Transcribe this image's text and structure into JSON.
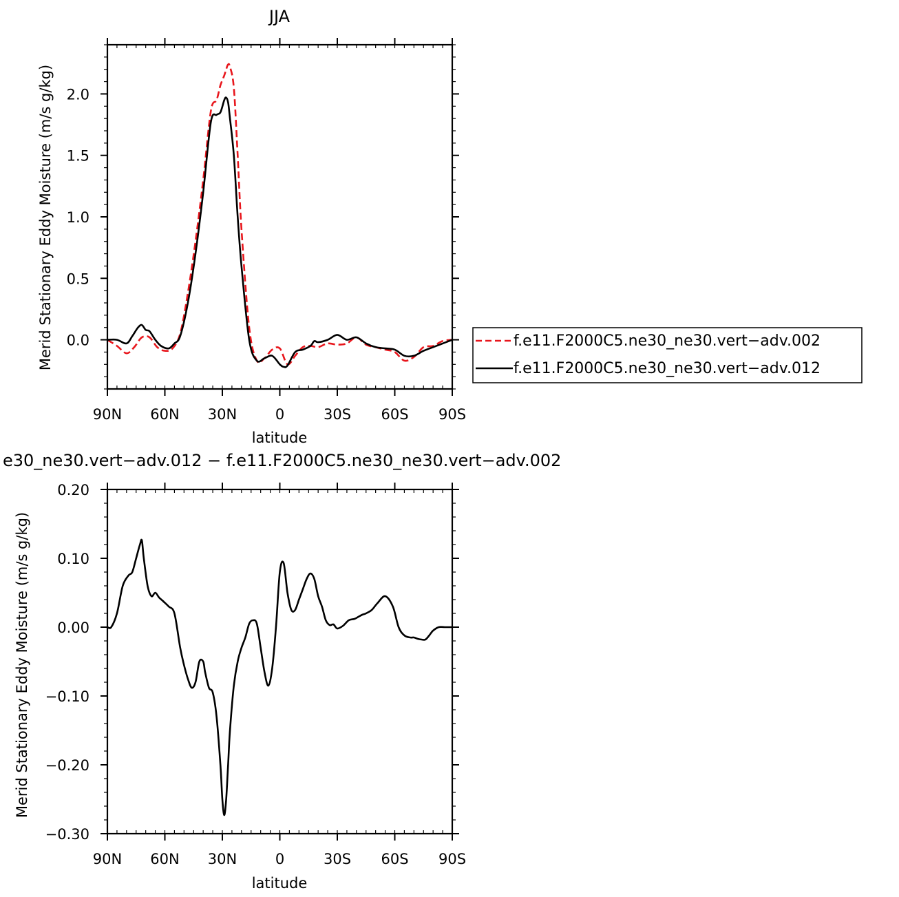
{
  "figure": {
    "top_title": "JJA",
    "bottom_title": "e30_ne30.vert−adv.012 − f.e11.F2000C5.ne30_ne30.vert−adv.002",
    "legend": [
      {
        "label": "f.e11.F2000C5.ne30_ne30.vert−adv.002",
        "color": "#e8161c",
        "style": "dashed"
      },
      {
        "label": "f.e11.F2000C5.ne30_ne30.vert−adv.012",
        "color": "#000000",
        "style": "solid"
      }
    ]
  },
  "chart_data": [
    {
      "type": "line",
      "title": "JJA",
      "xlabel": "latitude",
      "ylabel": "Merid Stationary Eddy Moisture (m/s g/kg)",
      "xlim": [
        90,
        -90
      ],
      "ylim": [
        -0.4,
        2.4
      ],
      "x_ticks": [
        90,
        60,
        30,
        0,
        -30,
        -60,
        -90
      ],
      "x_tick_labels": [
        "90N",
        "60N",
        "30N",
        "0",
        "30S",
        "60S",
        "90S"
      ],
      "y_ticks": [
        0.0,
        0.5,
        1.0,
        1.5,
        2.0
      ],
      "y_tick_labels": [
        "0.0",
        "0.5",
        "1.0",
        "1.5",
        "2.0"
      ],
      "legend_position": "right",
      "series": [
        {
          "name": "f.e11.F2000C5.ne30_ne30.vert−adv.002",
          "color": "#e8161c",
          "style": "dashed",
          "x": [
            90,
            85,
            80,
            76,
            72,
            68,
            64,
            60,
            56,
            52,
            48,
            44,
            40,
            36,
            33,
            31,
            29,
            28,
            27,
            26,
            24,
            22,
            20,
            16,
            12,
            8,
            4,
            0,
            -4,
            -8,
            -12,
            -16,
            -20,
            -25,
            -30,
            -35,
            -40,
            -45,
            -50,
            -55,
            -60,
            -65,
            -70,
            -75,
            -80,
            -85,
            -90
          ],
          "y": [
            0.0,
            -0.05,
            -0.11,
            -0.06,
            0.02,
            0.02,
            -0.06,
            -0.09,
            -0.07,
            0.05,
            0.38,
            0.8,
            1.3,
            1.86,
            1.95,
            2.07,
            2.15,
            2.2,
            2.24,
            2.22,
            2.05,
            1.5,
            0.9,
            0.1,
            -0.17,
            -0.15,
            -0.08,
            -0.07,
            -0.2,
            -0.13,
            -0.06,
            -0.05,
            -0.06,
            -0.03,
            -0.04,
            -0.03,
            0.02,
            -0.04,
            -0.06,
            -0.08,
            -0.1,
            -0.17,
            -0.14,
            -0.06,
            -0.05,
            -0.01,
            0.0
          ]
        },
        {
          "name": "f.e11.F2000C5.ne30_ne30.vert−adv.012",
          "color": "#000000",
          "style": "solid",
          "x": [
            90,
            85,
            80,
            77,
            74,
            72,
            70,
            68,
            65,
            62,
            58,
            55,
            52,
            48,
            44,
            40,
            36,
            33,
            31,
            29,
            28,
            27,
            26,
            24,
            22,
            20,
            16,
            12,
            8,
            4,
            0,
            -2,
            -4,
            -8,
            -12,
            -16,
            -18,
            -20,
            -25,
            -30,
            -35,
            -40,
            -45,
            -50,
            -55,
            -60,
            -65,
            -70,
            -75,
            -80,
            -85,
            -90
          ],
          "y": [
            0.0,
            0.0,
            -0.03,
            0.03,
            0.1,
            0.12,
            0.08,
            0.07,
            0.0,
            -0.05,
            -0.07,
            -0.03,
            0.03,
            0.3,
            0.7,
            1.2,
            1.77,
            1.83,
            1.85,
            1.95,
            1.97,
            1.93,
            1.8,
            1.5,
            1.0,
            0.6,
            0.0,
            -0.17,
            -0.15,
            -0.13,
            -0.2,
            -0.22,
            -0.21,
            -0.1,
            -0.08,
            -0.05,
            -0.01,
            -0.02,
            0.0,
            0.04,
            0.0,
            0.02,
            -0.03,
            -0.06,
            -0.07,
            -0.08,
            -0.13,
            -0.13,
            -0.09,
            -0.06,
            -0.03,
            0.0
          ]
        }
      ]
    },
    {
      "type": "line",
      "title": "e30_ne30.vert−adv.012 − f.e11.F2000C5.ne30_ne30.vert−adv.002",
      "xlabel": "latitude",
      "ylabel": "Merid Stationary Eddy Moisture (m/s g/kg)",
      "xlim": [
        90,
        -90
      ],
      "ylim": [
        -0.3,
        0.2
      ],
      "x_ticks": [
        90,
        60,
        30,
        0,
        -30,
        -60,
        -90
      ],
      "x_tick_labels": [
        "90N",
        "60N",
        "30N",
        "0",
        "30S",
        "60S",
        "90S"
      ],
      "y_ticks": [
        0.2,
        0.1,
        0.0,
        -0.1,
        -0.2,
        -0.3
      ],
      "y_tick_labels": [
        "0.20",
        "0.10",
        "0.00",
        "−0.10",
        "−0.20",
        "−0.30"
      ],
      "series": [
        {
          "name": "",
          "color": "#000000",
          "style": "solid",
          "x": [
            90,
            88,
            85,
            82,
            79,
            77,
            75,
            73,
            72,
            71,
            69,
            67,
            65,
            63,
            61,
            58,
            55,
            52,
            50,
            48,
            46,
            44,
            42,
            40,
            39,
            37,
            35,
            33,
            31,
            30,
            29,
            28,
            27,
            26,
            24,
            22,
            20,
            18,
            16,
            14,
            12,
            10,
            8,
            6,
            4,
            2,
            0,
            -2,
            -4,
            -6,
            -8,
            -10,
            -12,
            -14,
            -16,
            -18,
            -20,
            -22,
            -24,
            -26,
            -28,
            -30,
            -33,
            -36,
            -39,
            -41,
            -43,
            -45,
            -48,
            -51,
            -55,
            -59,
            -62,
            -65,
            -68,
            -70,
            -72,
            -74,
            -76,
            -78,
            -80,
            -83,
            -86,
            -88,
            -90
          ],
          "y": [
            0.0,
            0.0,
            0.02,
            0.06,
            0.075,
            0.08,
            0.1,
            0.12,
            0.126,
            0.1,
            0.06,
            0.045,
            0.05,
            0.043,
            0.038,
            0.03,
            0.02,
            -0.03,
            -0.055,
            -0.075,
            -0.088,
            -0.08,
            -0.05,
            -0.05,
            -0.065,
            -0.088,
            -0.095,
            -0.13,
            -0.2,
            -0.25,
            -0.273,
            -0.25,
            -0.2,
            -0.15,
            -0.085,
            -0.05,
            -0.03,
            -0.015,
            0.005,
            0.01,
            0.005,
            -0.03,
            -0.065,
            -0.085,
            -0.06,
            0.0,
            0.08,
            0.093,
            0.05,
            0.025,
            0.025,
            0.04,
            0.055,
            0.07,
            0.078,
            0.07,
            0.045,
            0.03,
            0.01,
            0.003,
            0.004,
            -0.002,
            0.002,
            0.01,
            0.012,
            0.015,
            0.018,
            0.02,
            0.025,
            0.035,
            0.045,
            0.03,
            0.0,
            -0.012,
            -0.015,
            -0.015,
            -0.017,
            -0.018,
            -0.018,
            -0.012,
            -0.005,
            0.0,
            0.0,
            0.0,
            0.0
          ]
        }
      ]
    }
  ]
}
